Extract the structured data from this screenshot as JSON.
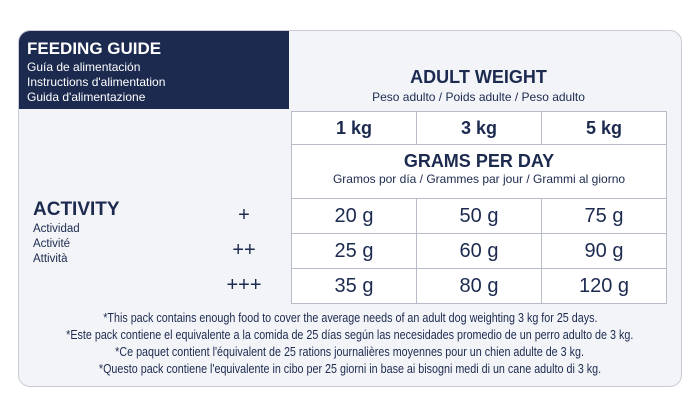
{
  "header": {
    "title": "FEEDING GUIDE",
    "subtitles": [
      "Guía de alimentación",
      "Instructions d'alimentation",
      "Guida d'alimentazione"
    ]
  },
  "adult_weight": {
    "title": "ADULT WEIGHT",
    "subtitle": "Peso adulto / Poids adulte / Peso adulto"
  },
  "table": {
    "columns": [
      "1 kg",
      "3 kg",
      "5 kg"
    ],
    "grams_per_day": {
      "title": "GRAMS PER DAY",
      "subtitle": "Gramos por día / Grammes par jour / Grammi al giorno"
    },
    "activity": {
      "title": "ACTIVITY",
      "subtitles": [
        "Actividad",
        "Activité",
        "Attività"
      ]
    },
    "rows": [
      {
        "level": "+",
        "cells": [
          "20 g",
          "50 g",
          "75 g"
        ]
      },
      {
        "level": "++",
        "cells": [
          "25 g",
          "60 g",
          "90 g"
        ]
      },
      {
        "level": "+++",
        "cells": [
          "35 g",
          "80 g",
          "120 g"
        ]
      }
    ]
  },
  "footnotes": [
    "*This pack contains enough food to cover the average needs of an adult dog weighting 3 kg for 25 days.",
    "*Este pack contiene el equivalente a la comida de 25 días según las necesidades promedio de un perro adulto de 3 kg.",
    "*Ce paquet contient l'équivalent de 25 rations journalières moyennes pour un chien adulte de 3 kg.",
    "*Questo pack contiene l'equivalente in cibo per 25 giorni in base ai bisogni medi di un cane adulto di 3 kg."
  ]
}
